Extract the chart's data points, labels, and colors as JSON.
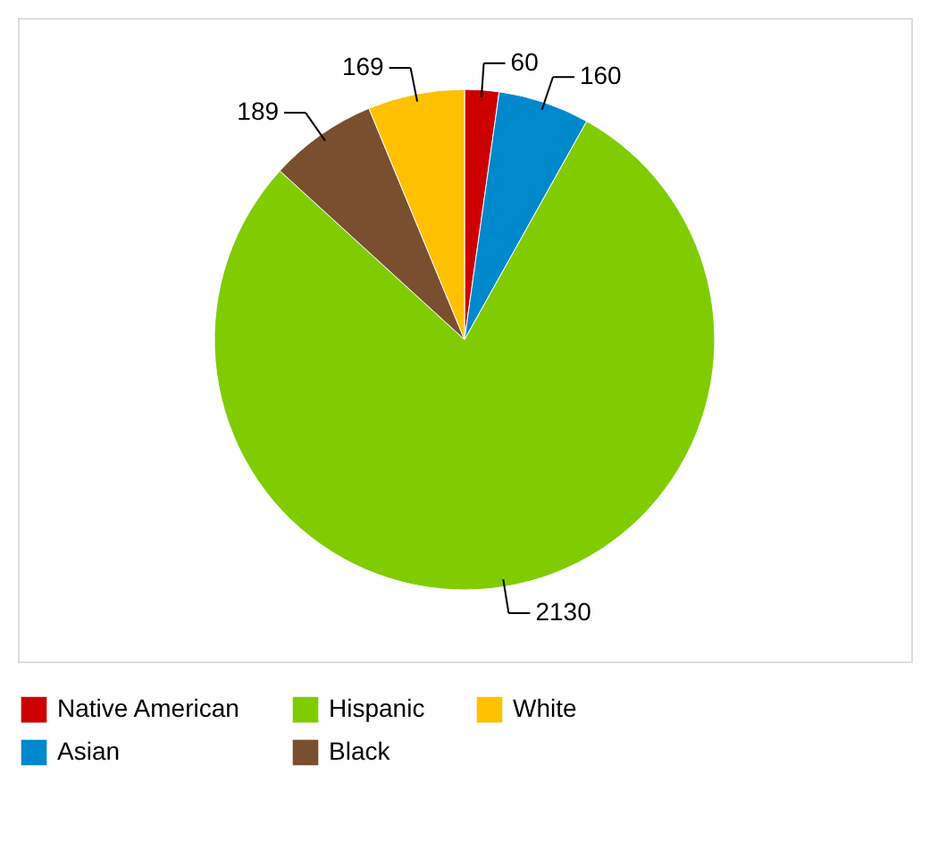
{
  "chart_data": {
    "type": "pie",
    "categories": [
      "Native American",
      "Asian",
      "Hispanic",
      "Black",
      "White"
    ],
    "values": [
      60,
      160,
      2130,
      189,
      169
    ],
    "colors": [
      "#cc0000",
      "#0088cc",
      "#80cc00",
      "#7a4f2f",
      "#ffc000"
    ],
    "data_labels": true,
    "legend": "bottom"
  }
}
